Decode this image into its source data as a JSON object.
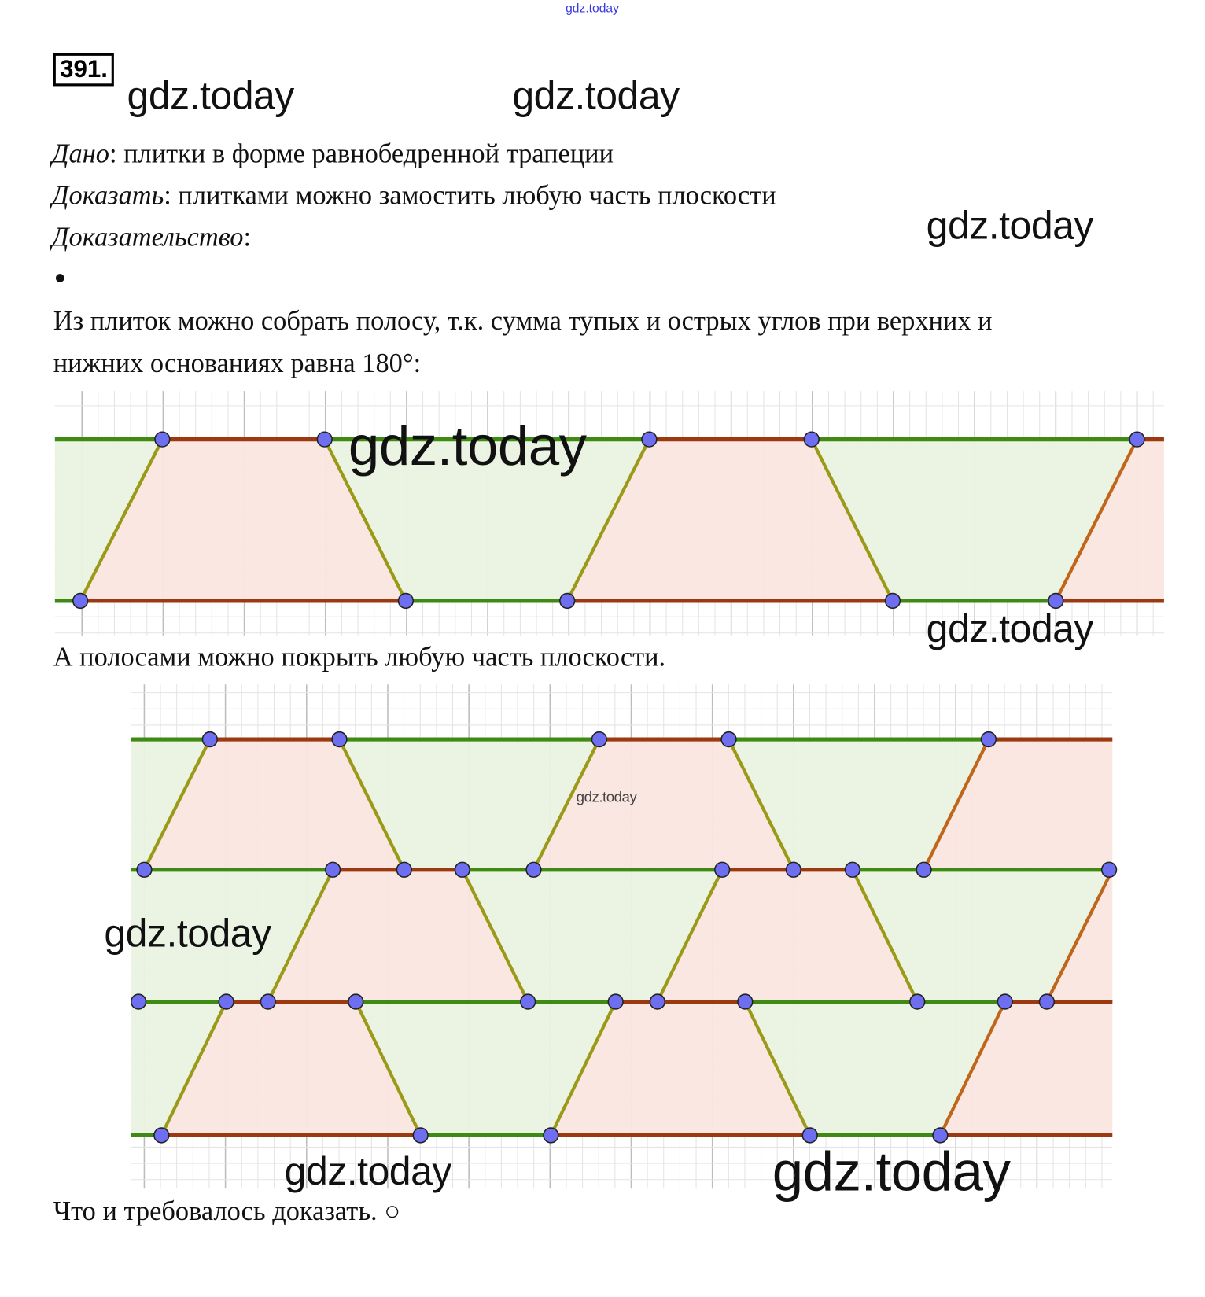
{
  "header": {
    "top_watermark": "gdz.today",
    "problem_number": "391."
  },
  "watermarks": [
    "gdz.today",
    "gdz.today",
    "gdz.today",
    "gdz.today",
    "gdz.today",
    "gdz.today",
    "gdz.today",
    "gdz.today"
  ],
  "given": {
    "label": "Дано",
    "text": ": плитки в форме равнобедренной трапеции"
  },
  "prove": {
    "label": "Доказать",
    "text": ": плитками можно замостить любую часть плоскости"
  },
  "proof": {
    "label": "Доказательство",
    "text": ":"
  },
  "bullet": "●",
  "paragraph1_line1": "Из плиток можно собрать полосу, т.к. сумма тупых и острых углов при верхних и",
  "paragraph1_line2": "нижних основаниях равна 180°:",
  "paragraph2": "А полосами можно покрыть любую часть плоскости.",
  "conclusion": "Что и требовалось доказать. ○",
  "colors": {
    "green_fill": "#eaf3e2",
    "red_fill": "#fbe6e0",
    "green_line": "#3f8a12",
    "red_line": "#9b3a10",
    "side_line": "#9a9a18",
    "side_line_last": "#c0661a",
    "point": "#6e6ef0",
    "grid": "#d8d8d8"
  }
}
